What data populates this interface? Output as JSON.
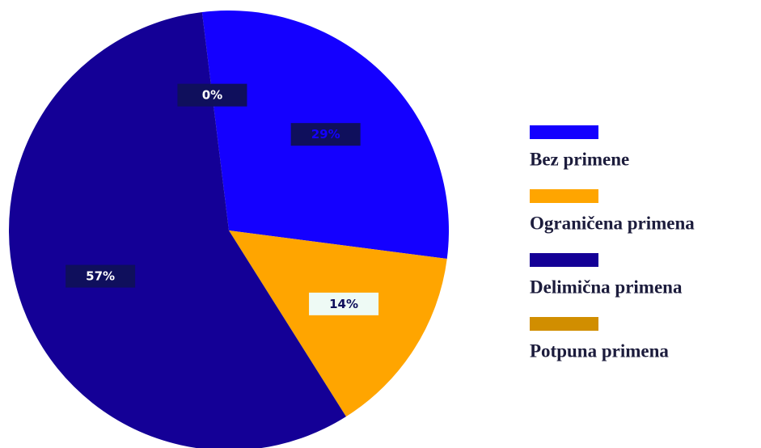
{
  "chart_data": {
    "type": "pie",
    "categories": [
      "Bez primene",
      "Ograničena primena",
      "Delimična primena",
      "Potpuna primena"
    ],
    "values": [
      29,
      14,
      57,
      0
    ],
    "value_labels": [
      "29%",
      "14%",
      "57%",
      "0%"
    ],
    "colors": [
      "#1400ff",
      "#ffa500",
      "#140096",
      "#d18e00"
    ],
    "legend": "right"
  }
}
